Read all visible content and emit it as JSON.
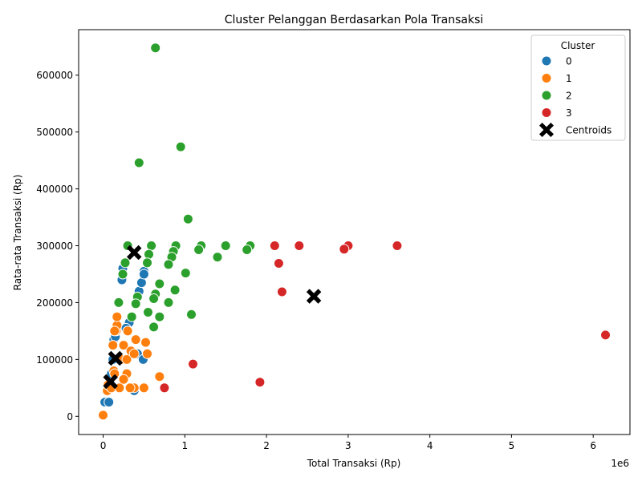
{
  "chart_data": {
    "type": "scatter",
    "title": "Cluster Pelanggan Berdasarkan Pola Transaksi",
    "xlabel": "Total Transaksi (Rp)",
    "ylabel": "Rata-rata Transaksi (Rp)",
    "x_scale_label": "1e6",
    "x_tick_scale": 1000000,
    "xlim": [
      -300000,
      6450000
    ],
    "ylim": [
      -32000,
      680000
    ],
    "xticks": [
      0,
      1000000,
      2000000,
      3000000,
      4000000,
      5000000,
      6000000
    ],
    "xtick_labels": [
      "0",
      "1",
      "2",
      "3",
      "4",
      "5",
      "6"
    ],
    "yticks": [
      0,
      100000,
      200000,
      300000,
      400000,
      500000,
      600000
    ],
    "ytick_labels": [
      "0",
      "100000",
      "200000",
      "300000",
      "400000",
      "500000",
      "600000"
    ],
    "grid": false,
    "legend": {
      "title": "Cluster",
      "position": "top-right"
    },
    "series": [
      {
        "name": "0",
        "color": "#1f77b4",
        "points": [
          [
            20000,
            25000
          ],
          [
            70000,
            25000
          ],
          [
            50000,
            45000
          ],
          [
            80000,
            60000
          ],
          [
            100000,
            75000
          ],
          [
            120000,
            100000
          ],
          [
            130000,
            135000
          ],
          [
            150000,
            140000
          ],
          [
            380000,
            45000
          ],
          [
            420000,
            110000
          ],
          [
            490000,
            100000
          ],
          [
            550000,
            110000
          ],
          [
            300000,
            160000
          ],
          [
            320000,
            165000
          ],
          [
            440000,
            220000
          ],
          [
            470000,
            235000
          ],
          [
            230000,
            240000
          ],
          [
            500000,
            255000
          ],
          [
            240000,
            260000
          ],
          [
            280000,
            155000
          ],
          [
            500000,
            250000
          ]
        ]
      },
      {
        "name": "1",
        "color": "#ff7f0e",
        "points": [
          [
            0,
            2000
          ],
          [
            50000,
            45000
          ],
          [
            60000,
            55000
          ],
          [
            100000,
            50000
          ],
          [
            130000,
            80000
          ],
          [
            140000,
            75000
          ],
          [
            120000,
            125000
          ],
          [
            160000,
            150000
          ],
          [
            170000,
            160000
          ],
          [
            170000,
            175000
          ],
          [
            200000,
            50000
          ],
          [
            220000,
            100000
          ],
          [
            250000,
            125000
          ],
          [
            290000,
            100000
          ],
          [
            290000,
            75000
          ],
          [
            300000,
            150000
          ],
          [
            340000,
            115000
          ],
          [
            380000,
            110000
          ],
          [
            400000,
            135000
          ],
          [
            380000,
            50000
          ],
          [
            500000,
            50000
          ],
          [
            520000,
            130000
          ],
          [
            540000,
            110000
          ],
          [
            690000,
            70000
          ],
          [
            140000,
            150000
          ],
          [
            330000,
            50000
          ],
          [
            250000,
            65000
          ]
        ]
      },
      {
        "name": "2",
        "color": "#2ca02c",
        "points": [
          [
            640000,
            648000
          ],
          [
            950000,
            474000
          ],
          [
            440000,
            446000
          ],
          [
            1040000,
            347000
          ],
          [
            300000,
            300000
          ],
          [
            590000,
            300000
          ],
          [
            890000,
            300000
          ],
          [
            1200000,
            300000
          ],
          [
            1500000,
            300000
          ],
          [
            1800000,
            300000
          ],
          [
            1170000,
            293000
          ],
          [
            1760000,
            293000
          ],
          [
            860000,
            290000
          ],
          [
            840000,
            280000
          ],
          [
            560000,
            285000
          ],
          [
            1400000,
            280000
          ],
          [
            270000,
            270000
          ],
          [
            540000,
            270000
          ],
          [
            800000,
            267000
          ],
          [
            1010000,
            252000
          ],
          [
            240000,
            250000
          ],
          [
            690000,
            233000
          ],
          [
            880000,
            222000
          ],
          [
            640000,
            215000
          ],
          [
            620000,
            207000
          ],
          [
            420000,
            210000
          ],
          [
            400000,
            198000
          ],
          [
            800000,
            200000
          ],
          [
            190000,
            200000
          ],
          [
            550000,
            183000
          ],
          [
            1080000,
            179000
          ],
          [
            690000,
            175000
          ],
          [
            350000,
            175000
          ],
          [
            620000,
            157000
          ]
        ]
      },
      {
        "name": "3",
        "color": "#d62728",
        "points": [
          [
            2100000,
            300000
          ],
          [
            2400000,
            300000
          ],
          [
            3000000,
            300000
          ],
          [
            3600000,
            300000
          ],
          [
            2950000,
            294000
          ],
          [
            2150000,
            269000
          ],
          [
            2190000,
            219000
          ],
          [
            6150000,
            143000
          ],
          [
            1100000,
            92000
          ],
          [
            1920000,
            60000
          ],
          [
            750000,
            50000
          ]
        ]
      }
    ],
    "centroids": {
      "name": "Centroids",
      "color": "#000000",
      "points": [
        [
          380000,
          288000
        ],
        [
          2580000,
          211000
        ],
        [
          150000,
          102000
        ],
        [
          90000,
          61000
        ]
      ]
    }
  }
}
